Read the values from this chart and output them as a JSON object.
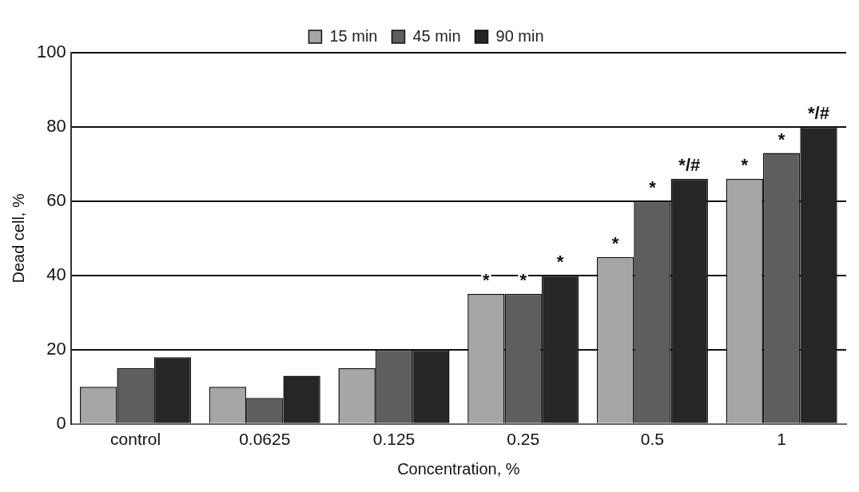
{
  "chart_data": {
    "type": "bar",
    "xlabel": "Concentration, %",
    "ylabel": "Dead cell, %",
    "categories": [
      "control",
      "0.0625",
      "0.125",
      "0.25",
      "0.5",
      "1"
    ],
    "series": [
      {
        "name": "15 min",
        "color": "#a6a6a6",
        "values": [
          10,
          10,
          15,
          35,
          45,
          66
        ],
        "value_labels": [
          null,
          null,
          null,
          "*",
          "*",
          "*"
        ]
      },
      {
        "name": "45 min",
        "color": "#5e5e5e",
        "values": [
          15,
          7,
          20,
          35,
          60,
          73
        ],
        "value_labels": [
          null,
          null,
          null,
          "*",
          "*",
          "*"
        ]
      },
      {
        "name": "90 min",
        "color": "#262626",
        "values": [
          18,
          13,
          20,
          40,
          66,
          80
        ],
        "value_labels": [
          null,
          null,
          null,
          "*",
          "*/#",
          "*/#"
        ]
      }
    ],
    "ylim": [
      0,
      100
    ],
    "yticks": [
      0,
      20,
      40,
      60,
      80,
      100
    ],
    "grid": "y",
    "legend": "top"
  }
}
